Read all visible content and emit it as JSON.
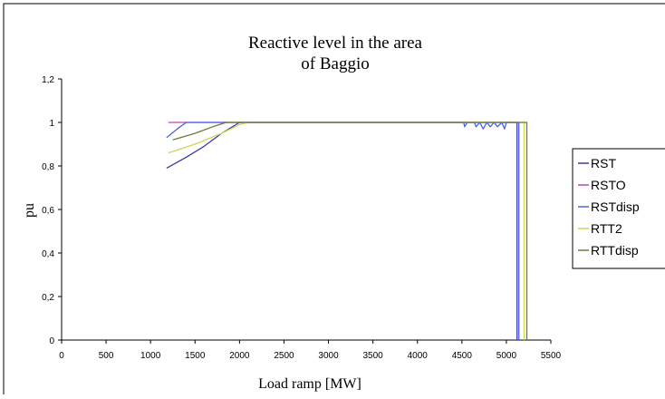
{
  "chart_data": {
    "type": "line",
    "title_lines": [
      "Reactive level in the area",
      "of Baggio"
    ],
    "xlabel": "Load ramp [MW]",
    "ylabel": "pu",
    "xlim": [
      0,
      5500
    ],
    "ylim": [
      0,
      1.2
    ],
    "x_ticks": [
      "0",
      "500",
      "1000",
      "1500",
      "2000",
      "2500",
      "3000",
      "3500",
      "4000",
      "4500",
      "5000",
      "5500"
    ],
    "y_ticks": [
      "0",
      "0,2",
      "0,4",
      "0,6",
      "0,8",
      "1",
      "1,2"
    ],
    "grid": false,
    "legend_position": "right",
    "series": [
      {
        "name": "RST",
        "color": "#3a3aa8",
        "points": [
          [
            1180,
            0.79
          ],
          [
            1400,
            0.84
          ],
          [
            1600,
            0.89
          ],
          [
            1800,
            0.95
          ],
          [
            2000,
            1.0
          ],
          [
            3000,
            1.0
          ],
          [
            4000,
            1.0
          ],
          [
            4800,
            1.0
          ],
          [
            5120,
            1.0
          ],
          [
            5120,
            0.0
          ]
        ]
      },
      {
        "name": "RSTO",
        "color": "#c040c0",
        "points": [
          [
            1200,
            1.0
          ],
          [
            5150,
            1.0
          ]
        ]
      },
      {
        "name": "RSTdisp",
        "color": "#4a62e0",
        "points": [
          [
            1180,
            0.93
          ],
          [
            1300,
            0.97
          ],
          [
            1400,
            1.0
          ],
          [
            2000,
            1.0
          ],
          [
            3000,
            1.0
          ],
          [
            4520,
            1.0
          ],
          [
            4530,
            0.98
          ],
          [
            4560,
            1.0
          ],
          [
            4640,
            1.0
          ],
          [
            4660,
            0.98
          ],
          [
            4700,
            1.0
          ],
          [
            4740,
            0.97
          ],
          [
            4780,
            1.0
          ],
          [
            4820,
            0.98
          ],
          [
            4860,
            1.0
          ],
          [
            4900,
            0.98
          ],
          [
            4950,
            1.0
          ],
          [
            4980,
            0.97
          ],
          [
            5000,
            1.0
          ],
          [
            5140,
            1.0
          ],
          [
            5140,
            0.0
          ]
        ]
      },
      {
        "name": "RTT2",
        "color": "#d4d455",
        "points": [
          [
            1200,
            0.86
          ],
          [
            1500,
            0.9
          ],
          [
            1800,
            0.95
          ],
          [
            2000,
            0.99
          ],
          [
            2100,
            1.0
          ],
          [
            5200,
            1.0
          ],
          [
            5200,
            0.0
          ]
        ]
      },
      {
        "name": "RTTdisp",
        "color": "#6b7a3a",
        "points": [
          [
            1250,
            0.92
          ],
          [
            1500,
            0.95
          ],
          [
            1700,
            0.98
          ],
          [
            1850,
            1.0
          ],
          [
            5230,
            1.0
          ],
          [
            5230,
            0.0
          ]
        ]
      }
    ]
  }
}
